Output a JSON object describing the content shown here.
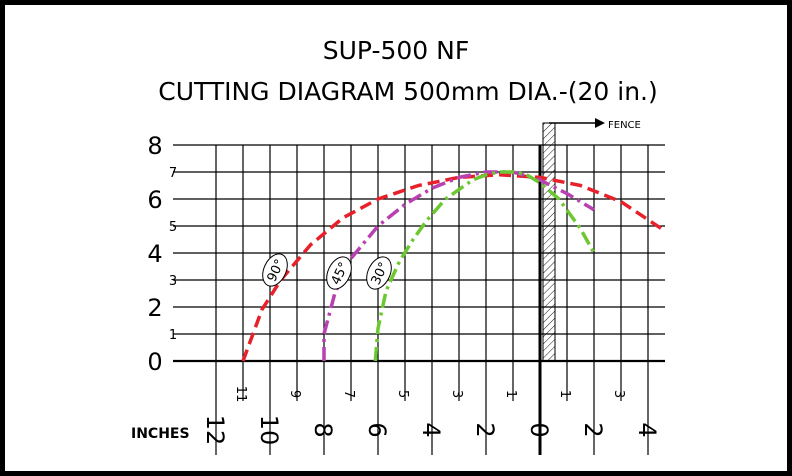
{
  "chart_data": {
    "type": "line",
    "title": "SUP-500 NF",
    "subtitle": "CUTTING DIAGRAM 500mm DIA.-(20 in.)",
    "xlabel": "INCHES",
    "fence_label": "FENCE",
    "xlim": [
      12,
      -4.5
    ],
    "ylim": [
      0,
      8
    ],
    "grid": true,
    "y_major_ticks": [
      0,
      2,
      4,
      6,
      8
    ],
    "y_minor_ticks": [
      1,
      3,
      5,
      7
    ],
    "x_major_ticks": [
      12,
      10,
      8,
      6,
      4,
      2,
      0,
      -2,
      -4
    ],
    "x_major_labels": [
      "12",
      "10",
      "8",
      "6",
      "4",
      "2",
      "0",
      "2",
      "4"
    ],
    "x_minor_ticks": [
      11,
      9,
      7,
      5,
      3,
      1,
      -1,
      -3
    ],
    "x_minor_labels": [
      "11",
      "9",
      "7",
      "5",
      "3",
      "1",
      "1",
      "3"
    ],
    "series": [
      {
        "name": "90°",
        "color": "#e8202a",
        "dash": "dash",
        "x": [
          11.0,
          10.3,
          9.6,
          8.5,
          7.3,
          6.0,
          4.5,
          3.0,
          1.5,
          0.0,
          -1.5,
          -3.0,
          -4.5
        ],
        "y": [
          0.0,
          1.9,
          3.0,
          4.3,
          5.3,
          6.0,
          6.5,
          6.8,
          6.9,
          6.8,
          6.5,
          5.9,
          4.9
        ]
      },
      {
        "name": "45°",
        "color": "#b840b0",
        "dash": "dashdot",
        "x": [
          8.0,
          8.0,
          7.6,
          7.0,
          6.0,
          5.0,
          4.0,
          3.0,
          2.0,
          1.5,
          1.0,
          0.0,
          -1.0,
          -2.0
        ],
        "y": [
          0.0,
          1.0,
          2.5,
          3.8,
          5.0,
          5.8,
          6.4,
          6.8,
          7.0,
          7.0,
          7.0,
          6.7,
          6.2,
          5.6
        ]
      },
      {
        "name": "30°",
        "color": "#6cc830",
        "dash": "dashdot",
        "x": [
          6.1,
          6.0,
          5.7,
          5.2,
          4.7,
          4.2,
          3.5,
          2.5,
          2.0,
          1.5,
          1.0,
          0.5,
          0.0,
          -0.7,
          -1.5,
          -2.0
        ],
        "y": [
          0.0,
          1.2,
          2.6,
          3.7,
          4.5,
          5.2,
          6.0,
          6.7,
          6.9,
          7.0,
          7.0,
          6.9,
          6.6,
          6.0,
          4.9,
          4.0
        ]
      }
    ]
  }
}
